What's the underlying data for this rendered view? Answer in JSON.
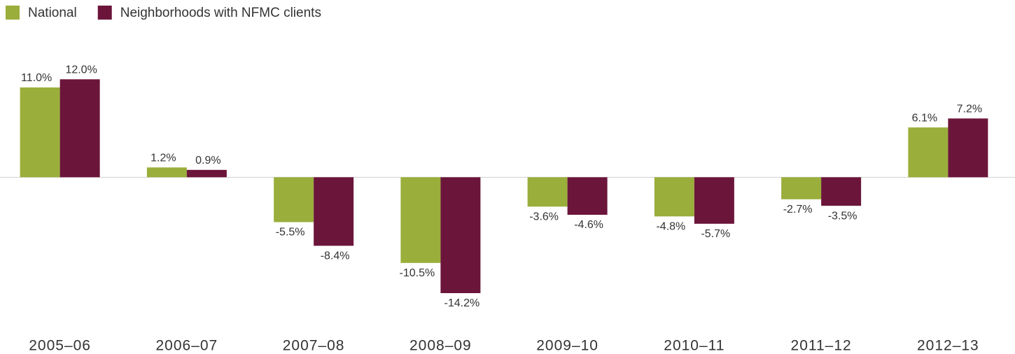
{
  "chart_data": {
    "type": "bar",
    "categories": [
      "2005–06",
      "2006–07",
      "2007–08",
      "2008–09",
      "2009–10",
      "2010–11",
      "2011–12",
      "2012–13"
    ],
    "series": [
      {
        "name": "National",
        "color": "#9aae3b",
        "values": [
          11.0,
          1.2,
          -5.5,
          -10.5,
          -3.6,
          -4.8,
          -2.7,
          6.1
        ],
        "value_labels": [
          "11.0%",
          "1.2%",
          "-5.5%",
          "-10.5%",
          "-3.6%",
          "-4.8%",
          "-2.7%",
          "6.1%"
        ]
      },
      {
        "name": "Neighborhoods with NFMC clients",
        "color": "#6c153b",
        "values": [
          12.0,
          0.9,
          -8.4,
          -14.2,
          -4.6,
          -5.7,
          -3.5,
          7.2
        ],
        "value_labels": [
          "12.0%",
          "0.9%",
          "-8.4%",
          "-14.2%",
          "-4.6%",
          "-5.7%",
          "-3.5%",
          "7.2%"
        ]
      }
    ],
    "ylim": [
      -16,
      14
    ],
    "legend": "top-left"
  }
}
